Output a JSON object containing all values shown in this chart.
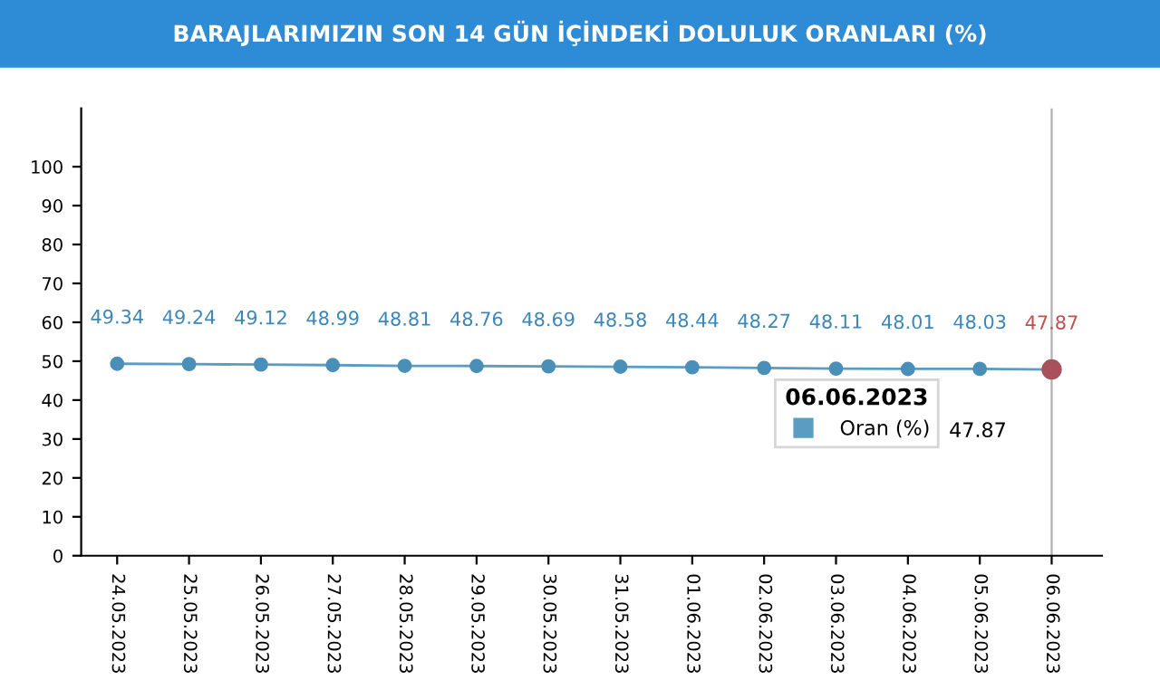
{
  "chart_data": {
    "type": "line",
    "title": "BARAJLARIMIZIN SON 14 GÜN İÇİNDEKİ DOLULUK ORANLARI (%)",
    "categories": [
      "24.05.2023",
      "25.05.2023",
      "26.05.2023",
      "27.05.2023",
      "28.05.2023",
      "29.05.2023",
      "30.05.2023",
      "31.05.2023",
      "01.06.2023",
      "02.06.2023",
      "03.06.2023",
      "04.06.2023",
      "05.06.2023",
      "06.06.2023"
    ],
    "series": [
      {
        "name": "Oran (%)",
        "color": "#5b9cc4",
        "colors": [
          "#4a8fb8",
          "#4a8fb8",
          "#4a8fb8",
          "#4a8fb8",
          "#4a8fb8",
          "#4a8fb8",
          "#4a8fb8",
          "#4a8fb8",
          "#4a8fb8",
          "#4a8fb8",
          "#4a8fb8",
          "#4a8fb8",
          "#4a8fb8",
          "#a8505c"
        ],
        "values": [
          49.34,
          49.24,
          49.12,
          48.99,
          48.81,
          48.76,
          48.69,
          48.58,
          48.44,
          48.27,
          48.11,
          48.01,
          48.03,
          47.87
        ]
      }
    ],
    "data_labels": true,
    "legend_title": "06.06.2023",
    "annotations": [
      "47.87"
    ],
    "legend": "right",
    "marker": "circle",
    "line_style": "solid",
    "ref_lines": [
      {
        "axis": "x",
        "value": "06.06.2023",
        "color": "#b0b0b0"
      }
    ],
    "ylim": [
      0,
      115
    ],
    "yticks": [
      0,
      10,
      20,
      30,
      40,
      50,
      60,
      70,
      80,
      90,
      100
    ],
    "grid": false
  }
}
